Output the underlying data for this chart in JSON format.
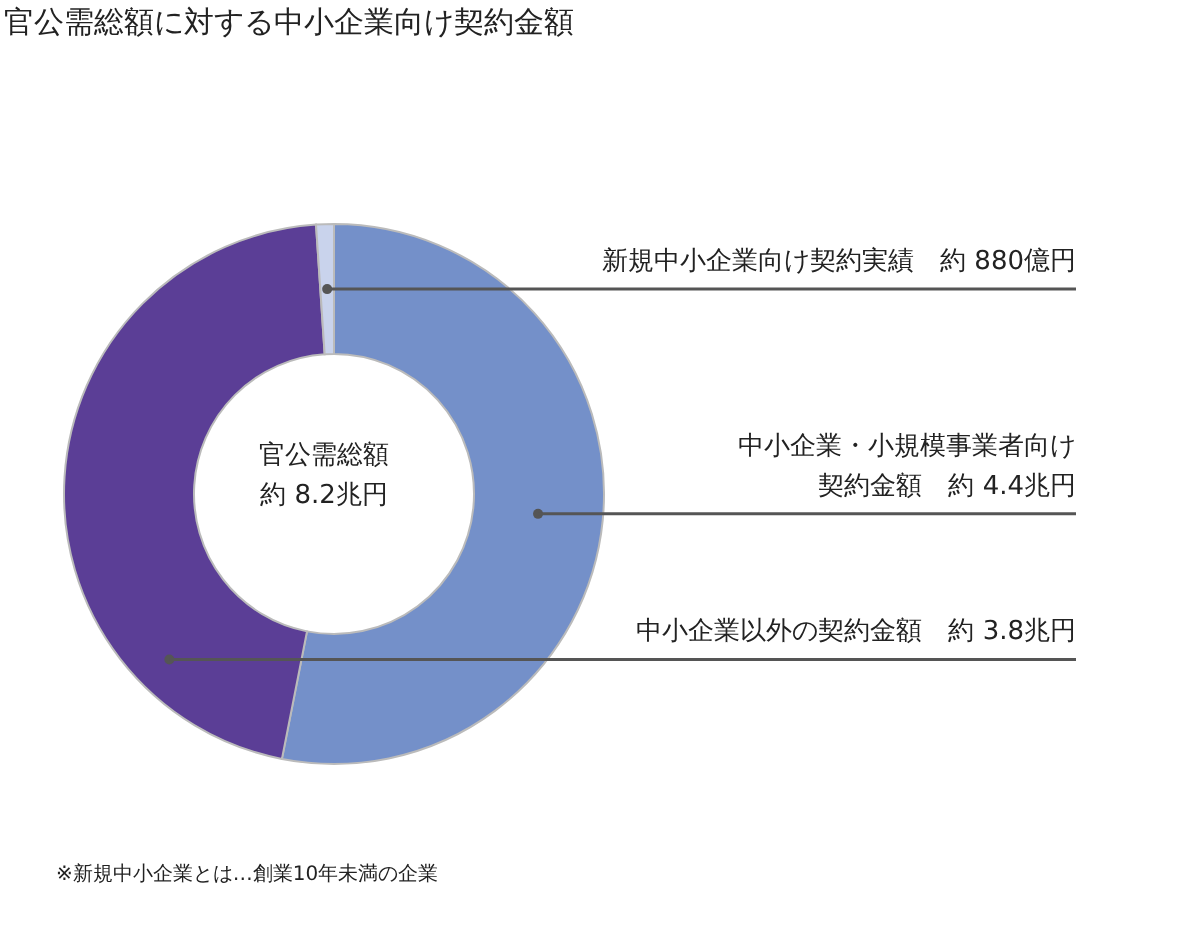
{
  "chart_data": {
    "type": "donut",
    "title": "官公需総額に対する中小企業向け契約金額",
    "categories": [
      "中小企業・小規模事業者向け契約金額",
      "中小企業以外の契約金額",
      "新規中小企業向け契約実績"
    ],
    "values": [
      4.4,
      3.8,
      0.088
    ],
    "value_labels": [
      "約 4.4兆円",
      "約 3.8兆円",
      "約 880億円"
    ],
    "colors": [
      "#7490c9",
      "#5b3e96",
      "#c9d3ec"
    ],
    "annotations": [
      "官公需総額",
      "約 8.2兆円",
      "※新規中小企業とは…創業10年未満の企業"
    ]
  }
}
